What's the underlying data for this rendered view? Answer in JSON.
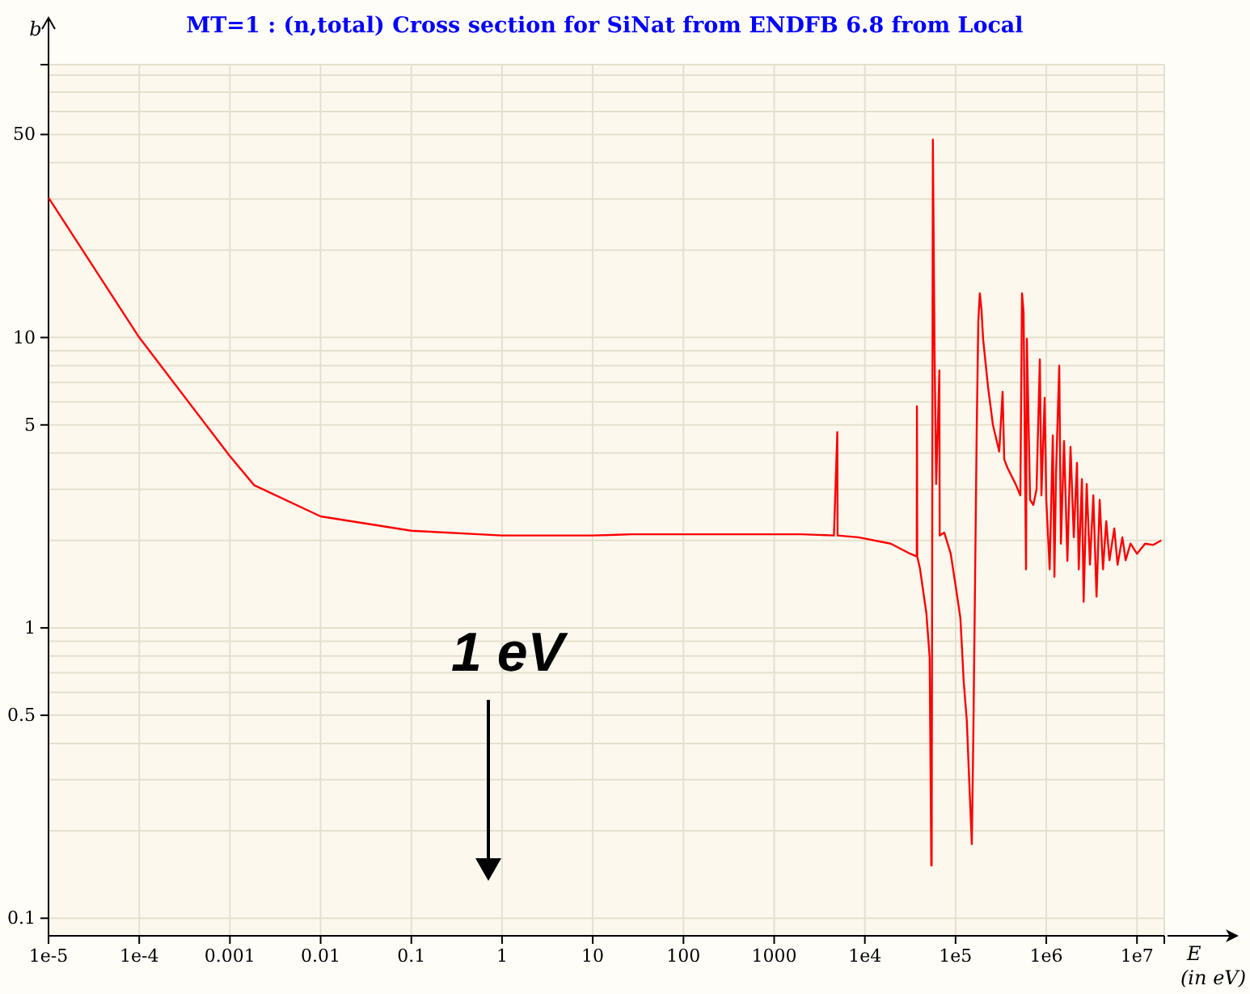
{
  "chart_data": {
    "type": "line",
    "title": "MT=1 : (n,total) Cross section for SiNat from ENDFB 6.8 from Local",
    "xlabel": "E (in eV)",
    "ylabel": "b",
    "log": "xy",
    "grid": true,
    "marker": "none",
    "line_style": "solid",
    "xlim": [
      1e-05,
      20000000.0
    ],
    "ylim": [
      0.087,
      87
    ],
    "xticks": [
      {
        "value": 1e-05,
        "label": "1e-5"
      },
      {
        "value": 0.0001,
        "label": "1e-4"
      },
      0.001,
      0.01,
      0.1,
      1,
      10,
      100,
      1000,
      {
        "value": 10000.0,
        "label": "1e4"
      },
      {
        "value": 100000.0,
        "label": "1e5"
      },
      {
        "value": 1000000.0,
        "label": "1e6"
      },
      {
        "value": 10000000.0,
        "label": "1e7"
      },
      {
        "value": 20000000.0,
        "label": null
      }
    ],
    "yticks": [
      0.1,
      {
        "value": 0.2,
        "label": null
      },
      {
        "value": 0.3,
        "label": null
      },
      {
        "value": 0.4,
        "label": null
      },
      0.5,
      {
        "value": 0.6,
        "label": null
      },
      {
        "value": 0.7,
        "label": null
      },
      {
        "value": 0.8,
        "label": null
      },
      {
        "value": 0.9,
        "label": null
      },
      1,
      {
        "value": 2,
        "label": null
      },
      {
        "value": 3,
        "label": null
      },
      {
        "value": 4,
        "label": null
      },
      5,
      {
        "value": 6,
        "label": null
      },
      {
        "value": 7,
        "label": null
      },
      {
        "value": 8,
        "label": null
      },
      {
        "value": 9,
        "label": null
      },
      10,
      {
        "value": 20,
        "label": null
      },
      {
        "value": 30,
        "label": null
      },
      {
        "value": 40,
        "label": null
      },
      50,
      {
        "value": 60,
        "label": null
      },
      {
        "value": 70,
        "label": null
      },
      {
        "value": 80,
        "label": null
      },
      {
        "value": 87,
        "label": null
      }
    ],
    "annotations": [
      "1 eV"
    ],
    "series": [
      {
        "color": "#ff0000",
        "x": [
          1e-05,
          0.0001,
          0.001,
          0.00185,
          0.01,
          0.1,
          1,
          10,
          27,
          2000,
          4560,
          4970,
          5000,
          8480,
          19300,
          31600,
          37300,
          37500,
          37800,
          40500,
          47700,
          51800,
          54000,
          54500,
          56200,
          58600,
          61100,
          66300,
          66800,
          75000,
          88400,
          100000,
          113000,
          123000,
          133000,
          139000,
          151000,
          157000,
          164000,
          171000,
          178000,
          185000,
          193000,
          201000,
          228000,
          258000,
          303000,
          330000,
          344000,
          373000,
          458000,
          518000,
          540000,
          562000,
          586000,
          598000,
          611000,
          663000,
          720000,
          781000,
          849000,
          884000,
          960000,
          1000000,
          1090000,
          1180000,
          1230000,
          1280000,
          1390000,
          1450000,
          1570000,
          1710000,
          1850000,
          2010000,
          2180000,
          2280000,
          2470000,
          2580000,
          2790000,
          3030000,
          3300000,
          3580000,
          3880000,
          4220000,
          4580000,
          4970000,
          5620000,
          6110000,
          6900000,
          7500000,
          8490000,
          10000000,
          12300000,
          15100000,
          18500000
        ],
        "values": [
          30.3,
          10,
          3.9,
          3.1,
          2.42,
          2.16,
          2.08,
          2.08,
          2.1,
          2.1,
          2.08,
          4.72,
          2.08,
          2.05,
          1.95,
          1.8,
          1.76,
          5.8,
          1.76,
          1.6,
          1.12,
          0.79,
          0.152,
          0.152,
          48,
          9.1,
          3.13,
          7.7,
          2.08,
          2.13,
          1.8,
          1.4,
          1.08,
          0.65,
          0.48,
          0.34,
          0.18,
          0.43,
          1.45,
          4.77,
          11.3,
          14.2,
          12.5,
          9.9,
          6.75,
          5.0,
          4.05,
          6.5,
          3.8,
          3.56,
          3.13,
          2.86,
          14.2,
          12.2,
          3.1,
          1.59,
          9.9,
          2.76,
          2.65,
          3.0,
          8.4,
          2.86,
          6.2,
          2.76,
          1.59,
          4.6,
          1.5,
          3.4,
          8.0,
          1.95,
          4.4,
          1.7,
          4.2,
          2.05,
          3.7,
          1.59,
          3.25,
          1.23,
          3.13,
          1.65,
          2.86,
          1.28,
          2.76,
          1.59,
          2.33,
          1.71,
          2.2,
          1.65,
          2.05,
          1.71,
          1.95,
          1.8,
          1.95,
          1.93,
          2.0
        ]
      }
    ]
  }
}
